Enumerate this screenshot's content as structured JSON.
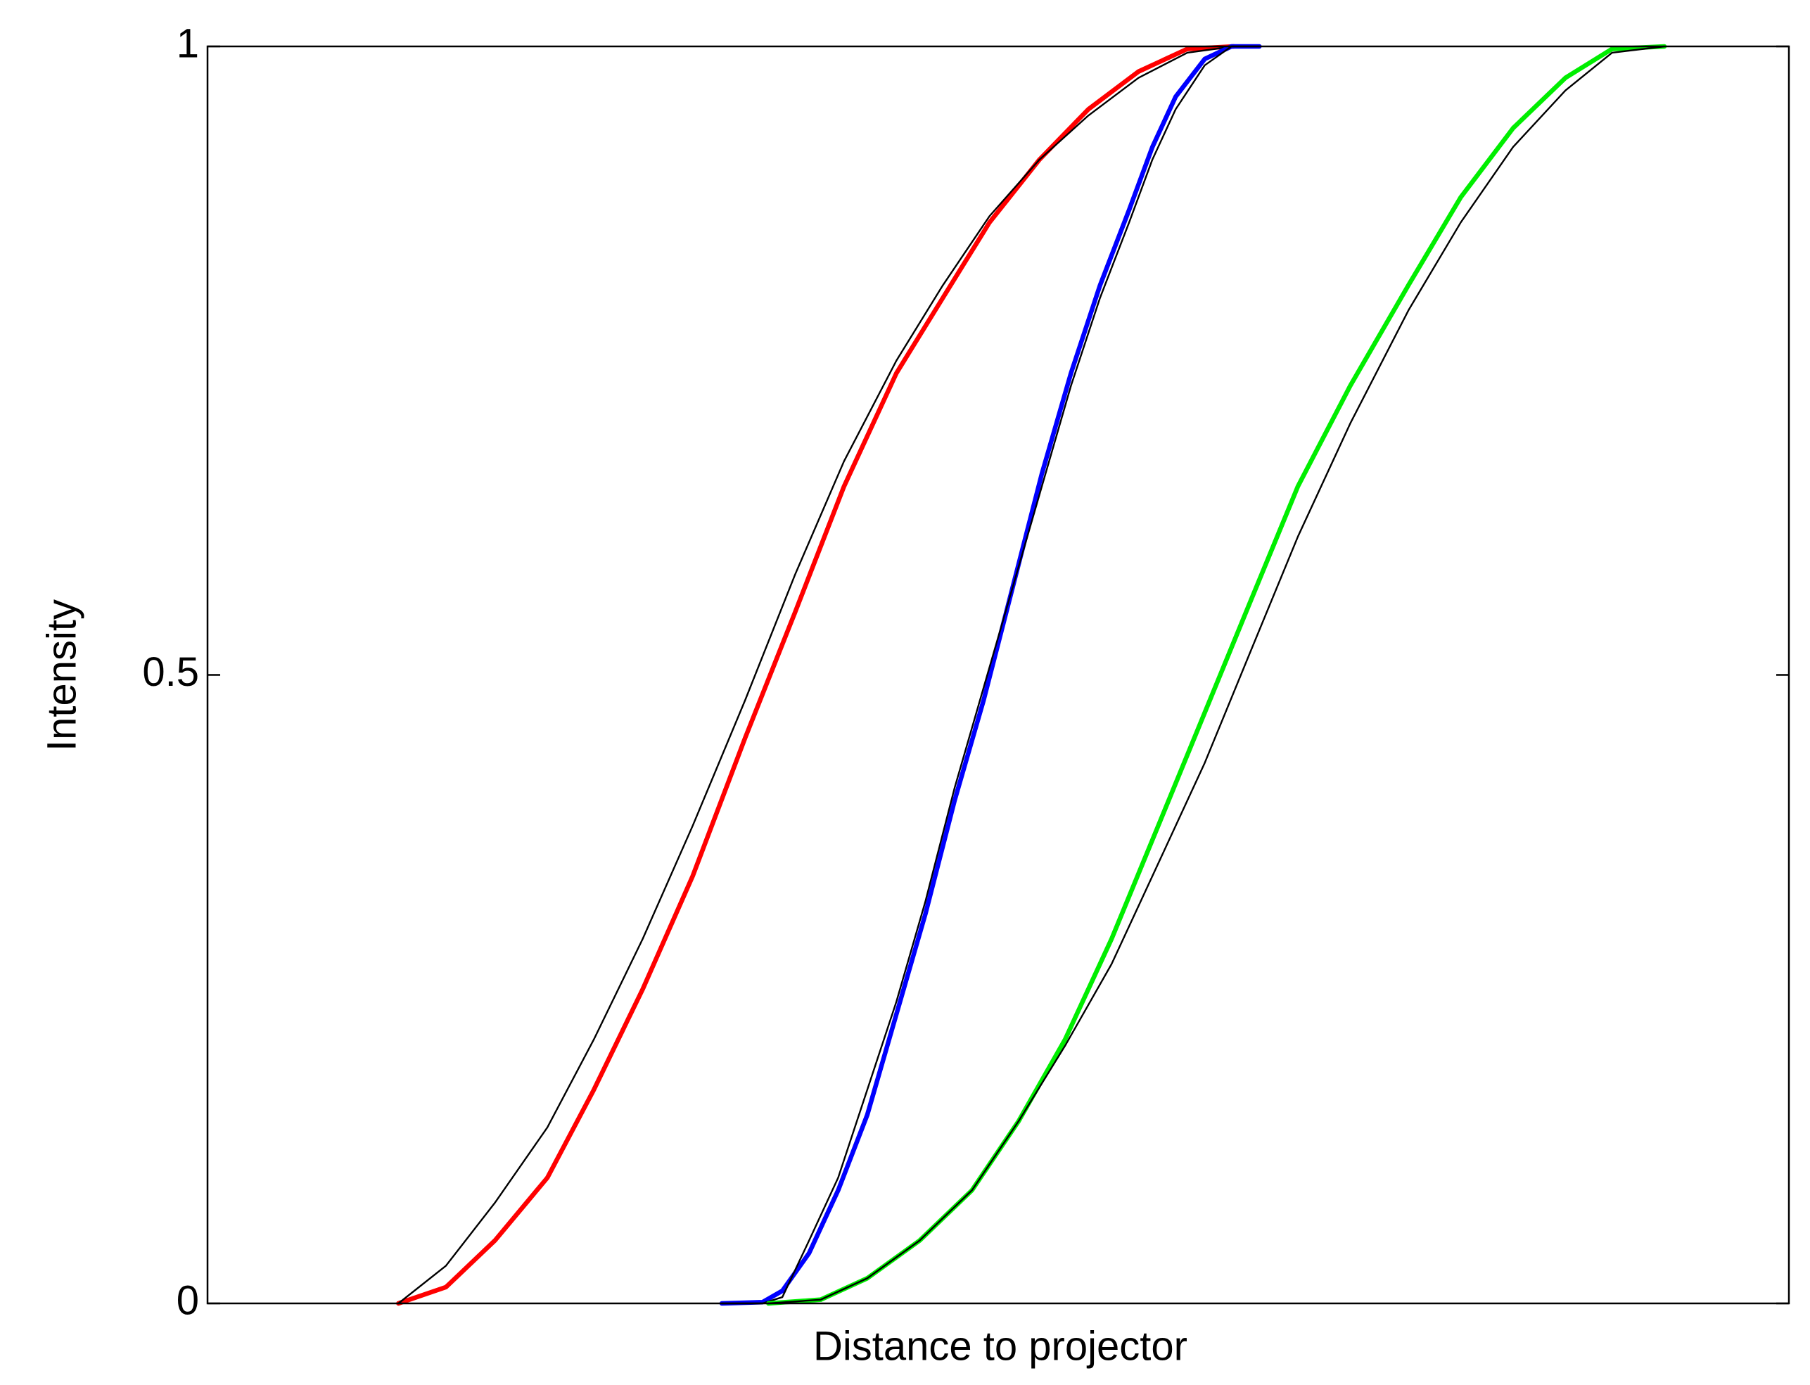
{
  "chart_data": {
    "type": "line",
    "xlabel": "Distance to projector",
    "ylabel": "Intensity",
    "xlim": [
      0,
      100
    ],
    "ylim": [
      0,
      1
    ],
    "yticks": [
      0,
      0.5,
      1
    ],
    "grid": false,
    "series": [
      {
        "color": "#ff0000",
        "width": "thick",
        "x": [
          12.07,
          15.08,
          18.17,
          21.49,
          24.43,
          27.52,
          30.68,
          34.0,
          37.16,
          40.25,
          43.56,
          46.5,
          49.45,
          52.61,
          55.7,
          58.87,
          61.96,
          64.9
        ],
        "values": [
          0,
          0.013,
          0.05,
          0.1,
          0.17,
          0.25,
          0.34,
          0.45,
          0.55,
          0.65,
          0.74,
          0.8,
          0.86,
          0.91,
          0.95,
          0.98,
          0.998,
          1
        ]
      },
      {
        "color": "#000000",
        "width": "thin",
        "x": [
          12.07,
          15.08,
          18.17,
          21.49,
          24.43,
          27.52,
          30.68,
          34.0,
          37.16,
          40.25,
          43.56,
          46.5,
          49.45,
          52.61,
          55.7,
          58.87,
          61.96,
          64.9
        ],
        "values": [
          0,
          0.03,
          0.08,
          0.14,
          0.21,
          0.29,
          0.38,
          0.48,
          0.58,
          0.67,
          0.75,
          0.81,
          0.865,
          0.91,
          0.945,
          0.975,
          0.995,
          1
        ]
      },
      {
        "color": "#0000ff",
        "width": "thick",
        "x": [
          32.52,
          35.1,
          36.35,
          38.04,
          39.88,
          41.72,
          43.56,
          45.4,
          47.24,
          49.08,
          50.92,
          52.76,
          54.6,
          56.44,
          58.28,
          59.75,
          61.22,
          63.06,
          64.75,
          66.52
        ],
        "values": [
          0,
          0.001,
          0.01,
          0.04,
          0.09,
          0.15,
          0.23,
          0.31,
          0.4,
          0.48,
          0.57,
          0.66,
          0.74,
          0.81,
          0.87,
          0.92,
          0.96,
          0.99,
          1,
          1
        ]
      },
      {
        "color": "#000000",
        "width": "thin",
        "x": [
          32.52,
          35.1,
          36.35,
          38.04,
          39.88,
          41.72,
          43.56,
          45.4,
          47.24,
          49.08,
          50.92,
          52.76,
          54.6,
          56.44,
          58.28,
          59.75,
          61.22,
          63.06,
          64.75,
          66.52
        ],
        "values": [
          0,
          0,
          0.005,
          0.05,
          0.1,
          0.17,
          0.24,
          0.32,
          0.41,
          0.49,
          0.57,
          0.65,
          0.73,
          0.8,
          0.86,
          0.91,
          0.95,
          0.985,
          1,
          1
        ]
      },
      {
        "color": "#00ee00",
        "width": "thick",
        "x": [
          35.47,
          38.78,
          41.72,
          45.03,
          48.34,
          51.29,
          54.23,
          57.17,
          60.12,
          63.06,
          66.0,
          68.95,
          72.26,
          75.94,
          79.25,
          82.56,
          85.87,
          88.82,
          92.13
        ],
        "values": [
          0,
          0.003,
          0.02,
          0.05,
          0.09,
          0.145,
          0.21,
          0.29,
          0.38,
          0.47,
          0.56,
          0.65,
          0.73,
          0.81,
          0.88,
          0.935,
          0.975,
          0.998,
          1
        ]
      },
      {
        "color": "#000000",
        "width": "thin",
        "x": [
          35.47,
          38.78,
          41.72,
          45.03,
          48.34,
          51.29,
          54.23,
          57.17,
          60.12,
          63.06,
          66.0,
          68.95,
          72.26,
          75.94,
          79.25,
          82.56,
          85.87,
          88.82,
          92.13
        ],
        "values": [
          0,
          0.003,
          0.02,
          0.05,
          0.09,
          0.145,
          0.205,
          0.27,
          0.35,
          0.43,
          0.52,
          0.61,
          0.7,
          0.79,
          0.86,
          0.92,
          0.965,
          0.995,
          1
        ]
      }
    ]
  }
}
